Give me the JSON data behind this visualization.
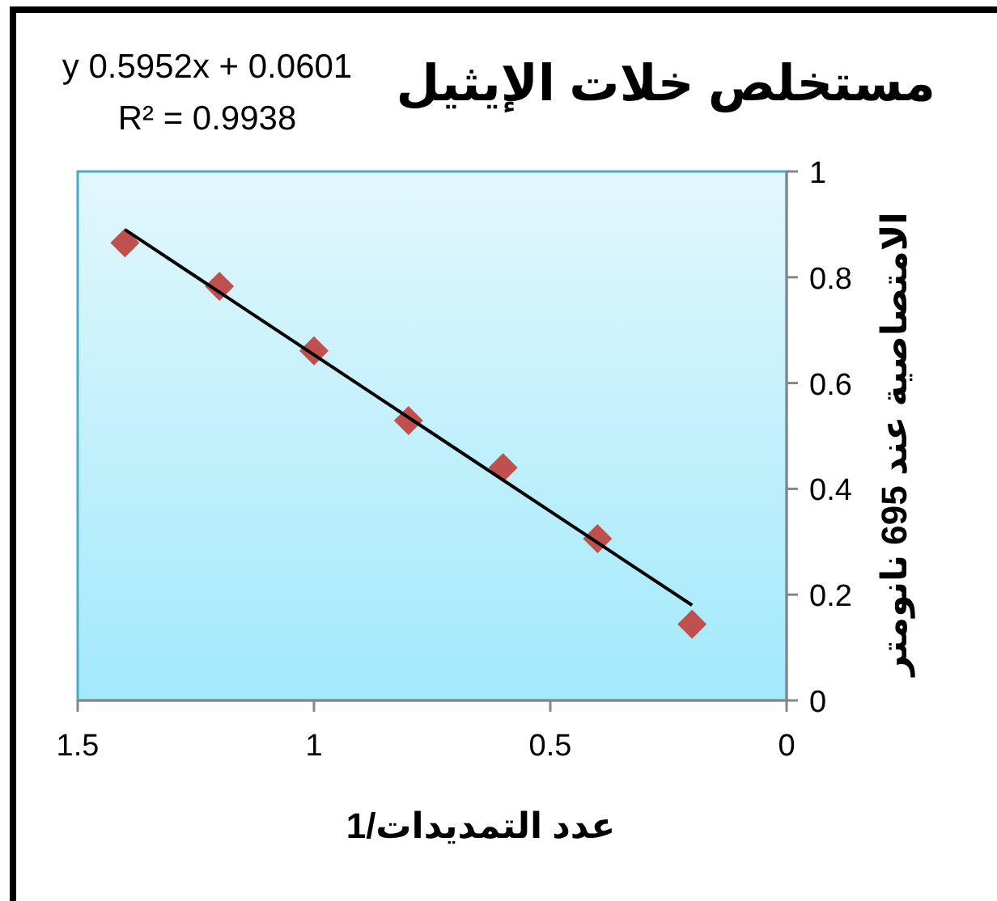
{
  "chart_data": {
    "type": "scatter",
    "title": "مستخلص خلات الإيثيل",
    "xlabel": "عدد التمديدات/1",
    "ylabel": "الامتصاصية عند 695 نانومتر",
    "annotations": [
      "y  0.5952x + 0.0601",
      "R² = 0.9938"
    ],
    "series": [
      {
        "type": "scatter",
        "color": "#c0504d",
        "marker": "diamond",
        "x": [
          1.4,
          1.2,
          1.0,
          0.8,
          0.6,
          0.4,
          0.2
        ],
        "values": [
          0.865,
          0.783,
          0.661,
          0.529,
          0.44,
          0.306,
          0.144
        ]
      },
      {
        "type": "line",
        "color": "#000000",
        "marker": "none",
        "x": [
          1.4,
          0.2
        ],
        "values": [
          0.89,
          0.18
        ]
      }
    ],
    "xlim": [
      1.5,
      0
    ],
    "xticks": [
      1.5,
      1,
      0.5,
      0
    ],
    "ylim": [
      0,
      1
    ],
    "yticks": [
      0,
      0.2,
      0.4,
      0.6,
      0.8,
      1
    ],
    "grid": false
  }
}
